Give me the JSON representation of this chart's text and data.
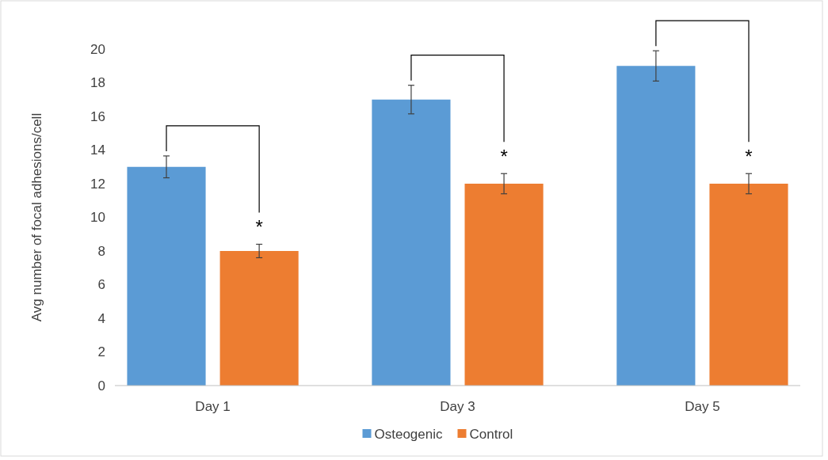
{
  "chart_data": {
    "type": "bar",
    "ylabel": "Avg number of focal adhesions/cell",
    "categories": [
      "Day 1",
      "Day 3",
      "Day 5"
    ],
    "series": [
      {
        "name": "Osteogenic",
        "color": "#5b9bd5",
        "values": [
          13,
          17,
          19
        ],
        "errors": [
          0.65,
          0.85,
          0.9
        ]
      },
      {
        "name": "Control",
        "color": "#ed7d31",
        "values": [
          8,
          12,
          12
        ],
        "errors": [
          0.4,
          0.6,
          0.6
        ]
      }
    ],
    "ylim": [
      0,
      20
    ],
    "yticks": [
      0,
      2,
      4,
      6,
      8,
      10,
      12,
      14,
      16,
      18,
      20
    ],
    "grid": false,
    "legend": "bottom",
    "annotations": [
      "*",
      "*",
      "*"
    ]
  }
}
